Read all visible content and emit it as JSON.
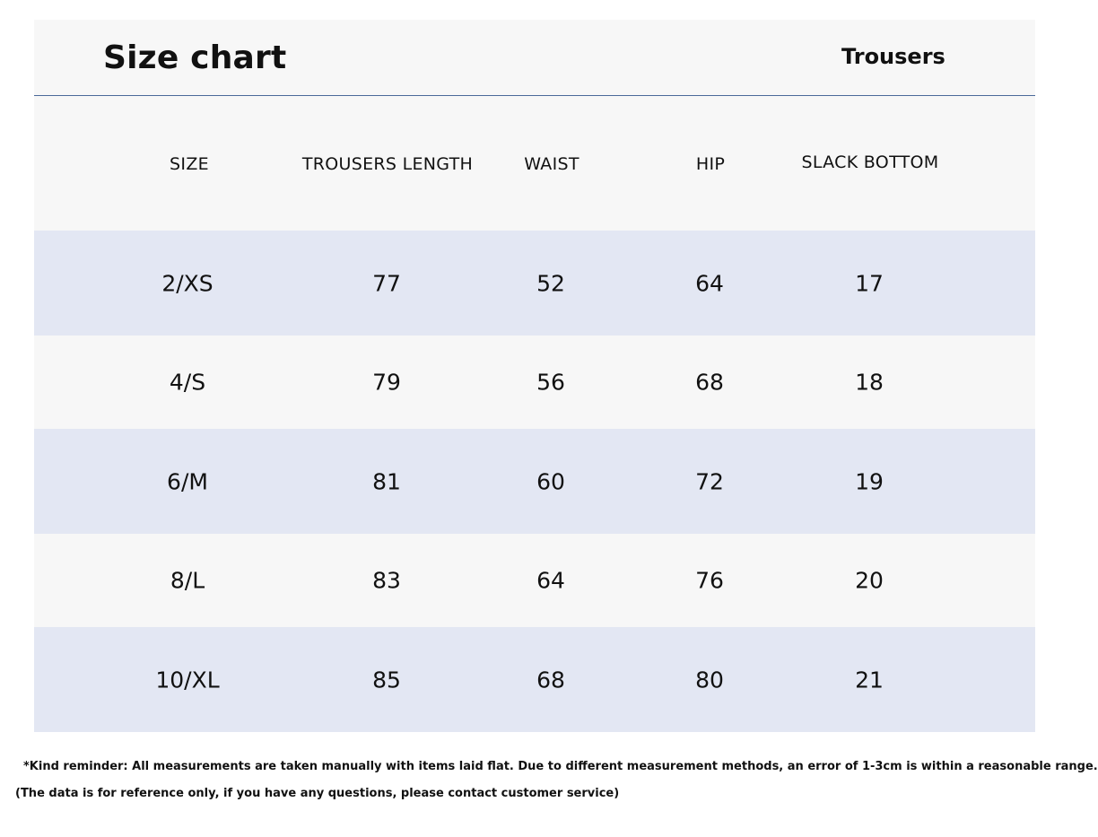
{
  "header": {
    "title": "Size chart",
    "subtitle": "Trousers"
  },
  "table": {
    "columns": [
      "SIZE",
      "TROUSERS LENGTH",
      "WAIST",
      "HIP",
      "SLACK BOTTOM"
    ],
    "rows": [
      [
        "2/XS",
        "77",
        "52",
        "64",
        "17"
      ],
      [
        "4/S",
        "79",
        "56",
        "68",
        "18"
      ],
      [
        "6/M",
        "81",
        "60",
        "72",
        "19"
      ],
      [
        "8/L",
        "83",
        "64",
        "76",
        "20"
      ],
      [
        "10/XL",
        "85",
        "68",
        "80",
        "21"
      ]
    ]
  },
  "notes": {
    "reminder": "*Kind reminder: All measurements are taken manually with items laid flat. Due to different measurement methods, an error of 1-3cm is within a reasonable range.",
    "disclaimer": "(The data is for reference only, if you have any questions, please contact customer service)"
  },
  "colors": {
    "shaded_row": "#e3e7f3",
    "plain_row": "#f7f7f7",
    "header_rule": "#4a6a9a"
  }
}
